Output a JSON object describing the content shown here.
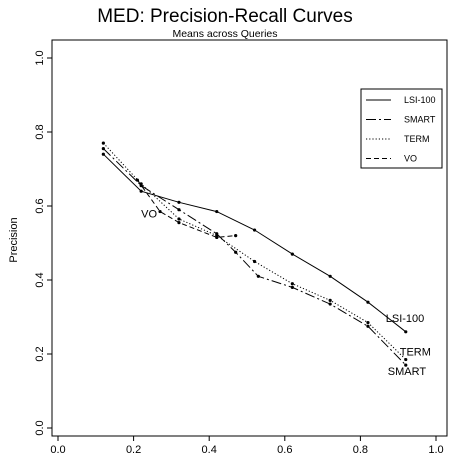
{
  "chart_data": {
    "type": "line",
    "title": "MED: Precision-Recall Curves",
    "subtitle": "Means across Queries",
    "xlabel": "",
    "ylabel": "Precision",
    "xlim": [
      0.0,
      1.0
    ],
    "ylim": [
      0.0,
      1.0
    ],
    "xticks": [
      "0.0",
      "0.2",
      "0.4",
      "0.6",
      "0.8",
      "1.0"
    ],
    "yticks": [
      "0.0",
      "0.2",
      "0.4",
      "0.6",
      "0.8",
      "1.0"
    ],
    "grid": false,
    "legend_position": "top-right",
    "series": [
      {
        "name": "LSI-100",
        "line_style": "solid",
        "end_label": "LSI-100",
        "points": [
          [
            0.12,
            0.74
          ],
          [
            0.22,
            0.64
          ],
          [
            0.32,
            0.61
          ],
          [
            0.42,
            0.585
          ],
          [
            0.52,
            0.535
          ],
          [
            0.62,
            0.47
          ],
          [
            0.72,
            0.41
          ],
          [
            0.82,
            0.34
          ],
          [
            0.92,
            0.26
          ]
        ]
      },
      {
        "name": "SMART",
        "line_style": "dash-dot",
        "end_label": "SMART",
        "points": [
          [
            0.12,
            0.755
          ],
          [
            0.22,
            0.655
          ],
          [
            0.32,
            0.59
          ],
          [
            0.42,
            0.525
          ],
          [
            0.47,
            0.475
          ],
          [
            0.53,
            0.41
          ],
          [
            0.62,
            0.38
          ],
          [
            0.72,
            0.335
          ],
          [
            0.82,
            0.275
          ],
          [
            0.92,
            0.17
          ]
        ]
      },
      {
        "name": "TERM",
        "line_style": "dotted",
        "end_label": "TERM",
        "points": [
          [
            0.12,
            0.77
          ],
          [
            0.22,
            0.66
          ],
          [
            0.32,
            0.565
          ],
          [
            0.42,
            0.52
          ],
          [
            0.52,
            0.45
          ],
          [
            0.62,
            0.39
          ],
          [
            0.72,
            0.345
          ],
          [
            0.82,
            0.285
          ],
          [
            0.92,
            0.185
          ]
        ]
      },
      {
        "name": "VO",
        "line_style": "dashed",
        "end_label": "VO",
        "points": [
          [
            0.21,
            0.67
          ],
          [
            0.27,
            0.585
          ],
          [
            0.32,
            0.555
          ],
          [
            0.42,
            0.515
          ],
          [
            0.47,
            0.52
          ]
        ]
      }
    ]
  }
}
